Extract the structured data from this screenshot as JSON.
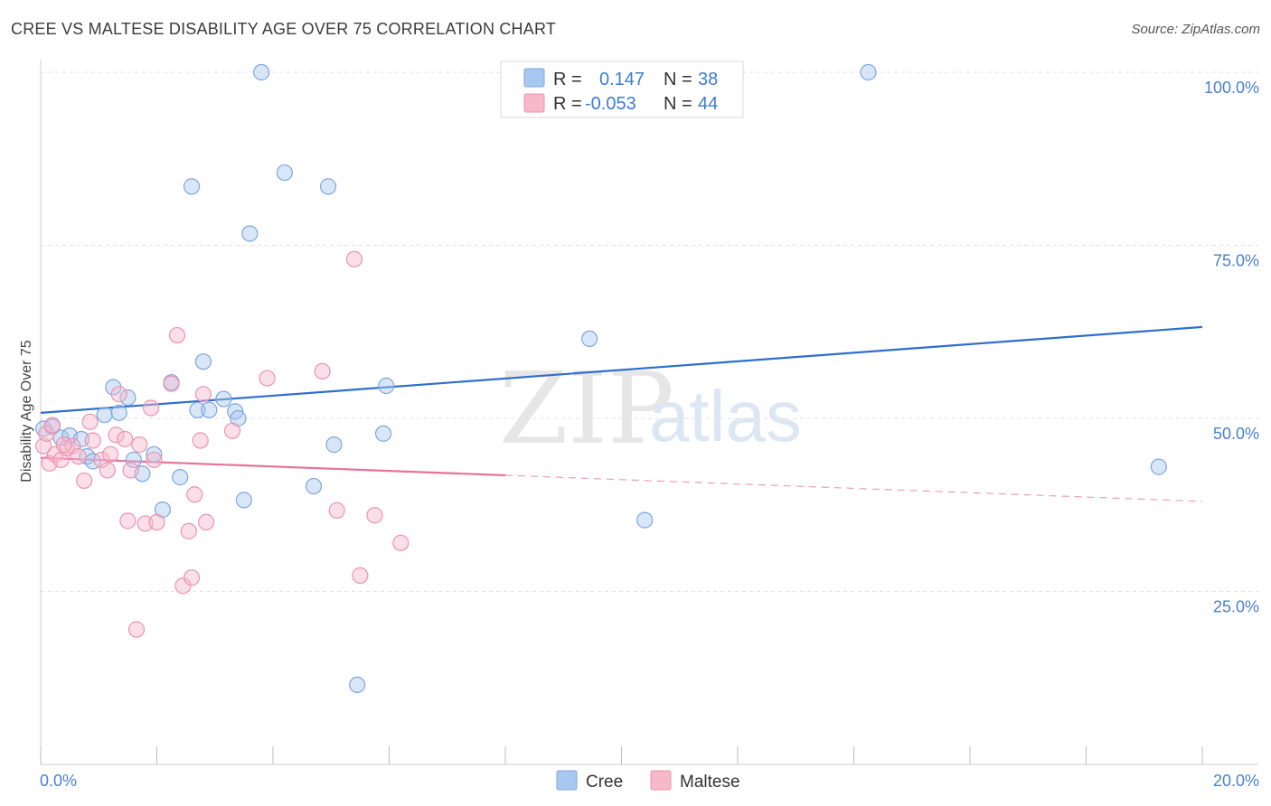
{
  "header": {
    "title": "CREE VS MALTESE DISABILITY AGE OVER 75 CORRELATION CHART",
    "source": "Source: ZipAtlas.com"
  },
  "watermark": {
    "zip": "ZIP",
    "atlas": "atlas"
  },
  "legend": {
    "rows": [
      {
        "r_label": "R =",
        "r_value": "0.147",
        "n_label": "N =",
        "n_value": "38",
        "color": "#a9c8f0"
      },
      {
        "r_label": "R =",
        "r_value": "-0.053",
        "n_label": "N =",
        "n_value": "44",
        "color": "#f6b9cc"
      }
    ]
  },
  "bottom_legend": [
    {
      "label": "Cree",
      "color": "#a9c8f0"
    },
    {
      "label": "Maltese",
      "color": "#f6b9cc"
    }
  ],
  "colors": {
    "cree_fill": "#a9c8f0",
    "cree_stroke": "#7ea6de",
    "cree_line": "#2d6fcc",
    "maltese_fill": "#f6b9cc",
    "maltese_stroke": "#ec93b0",
    "maltese_line": "#e8729a",
    "tick_label": "#4a7fd0"
  },
  "chart_data": {
    "type": "scatter",
    "title": "CREE VS MALTESE DISABILITY AGE OVER 75 CORRELATION CHART",
    "xlabel": "",
    "ylabel": "Disability Age Over 75",
    "xlim": [
      0,
      20
    ],
    "ylim": [
      0,
      105
    ],
    "x_tick_labels": [
      "0.0%",
      "20.0%"
    ],
    "y_ticks": [
      25,
      50,
      75,
      100
    ],
    "y_tick_labels": [
      "25.0%",
      "50.0%",
      "75.0%",
      "100.0%"
    ],
    "legend_position": "top-center",
    "series": [
      {
        "name": "Cree",
        "r": 0.147,
        "n": 38,
        "trend": {
          "x0": 0,
          "y0": 50.8,
          "x1": 20,
          "y1": 63.2,
          "dashed_from_x": null
        },
        "points": [
          [
            0.2,
            48.8
          ],
          [
            0.35,
            47.2
          ],
          [
            0.5,
            47.5
          ],
          [
            0.7,
            47.0
          ],
          [
            0.8,
            44.5
          ],
          [
            0.9,
            43.8
          ],
          [
            1.1,
            50.5
          ],
          [
            1.25,
            54.5
          ],
          [
            1.35,
            50.8
          ],
          [
            1.5,
            53.0
          ],
          [
            1.6,
            44.0
          ],
          [
            1.75,
            42.0
          ],
          [
            1.95,
            44.8
          ],
          [
            2.1,
            36.8
          ],
          [
            2.25,
            55.2
          ],
          [
            2.4,
            41.5
          ],
          [
            2.6,
            83.5
          ],
          [
            2.7,
            51.2
          ],
          [
            2.8,
            58.2
          ],
          [
            2.9,
            51.2
          ],
          [
            3.15,
            52.8
          ],
          [
            3.35,
            51.0
          ],
          [
            3.4,
            50.0
          ],
          [
            3.5,
            38.2
          ],
          [
            3.6,
            76.7
          ],
          [
            3.8,
            100.0
          ],
          [
            4.2,
            85.5
          ],
          [
            4.7,
            40.2
          ],
          [
            4.95,
            83.5
          ],
          [
            5.05,
            46.2
          ],
          [
            5.45,
            11.5
          ],
          [
            5.95,
            54.7
          ],
          [
            5.9,
            47.8
          ],
          [
            9.45,
            61.5
          ],
          [
            10.4,
            35.3
          ],
          [
            14.25,
            100.0
          ],
          [
            19.25,
            43.0
          ],
          [
            0.05,
            48.5
          ]
        ]
      },
      {
        "name": "Maltese",
        "r": -0.053,
        "n": 44,
        "trend": {
          "x0": 0,
          "y0": 44.3,
          "x1": 20,
          "y1": 38.0,
          "dashed_from_x": 8
        },
        "points": [
          [
            0.05,
            46.0
          ],
          [
            0.15,
            43.5
          ],
          [
            0.25,
            44.8
          ],
          [
            0.35,
            44.0
          ],
          [
            0.45,
            45.7
          ],
          [
            0.55,
            46.0
          ],
          [
            0.65,
            44.5
          ],
          [
            0.75,
            41.0
          ],
          [
            0.85,
            49.5
          ],
          [
            0.9,
            46.8
          ],
          [
            1.05,
            44.0
          ],
          [
            1.15,
            42.5
          ],
          [
            1.2,
            44.8
          ],
          [
            1.3,
            47.6
          ],
          [
            1.35,
            53.5
          ],
          [
            1.45,
            47.0
          ],
          [
            1.5,
            35.2
          ],
          [
            1.55,
            42.5
          ],
          [
            1.65,
            19.5
          ],
          [
            1.7,
            46.2
          ],
          [
            1.8,
            34.8
          ],
          [
            1.9,
            51.5
          ],
          [
            1.95,
            44.0
          ],
          [
            2.0,
            35.0
          ],
          [
            2.25,
            55.0
          ],
          [
            2.35,
            62.0
          ],
          [
            2.45,
            25.8
          ],
          [
            2.55,
            33.7
          ],
          [
            2.6,
            27.0
          ],
          [
            2.65,
            39.0
          ],
          [
            2.75,
            46.8
          ],
          [
            2.8,
            53.5
          ],
          [
            2.85,
            35.0
          ],
          [
            3.3,
            48.2
          ],
          [
            3.9,
            55.8
          ],
          [
            4.85,
            56.8
          ],
          [
            5.1,
            36.7
          ],
          [
            5.4,
            73.0
          ],
          [
            5.5,
            27.3
          ],
          [
            5.75,
            36.0
          ],
          [
            6.2,
            32.0
          ],
          [
            0.1,
            47.8
          ],
          [
            0.2,
            49.0
          ],
          [
            0.4,
            46.2
          ]
        ]
      }
    ]
  }
}
